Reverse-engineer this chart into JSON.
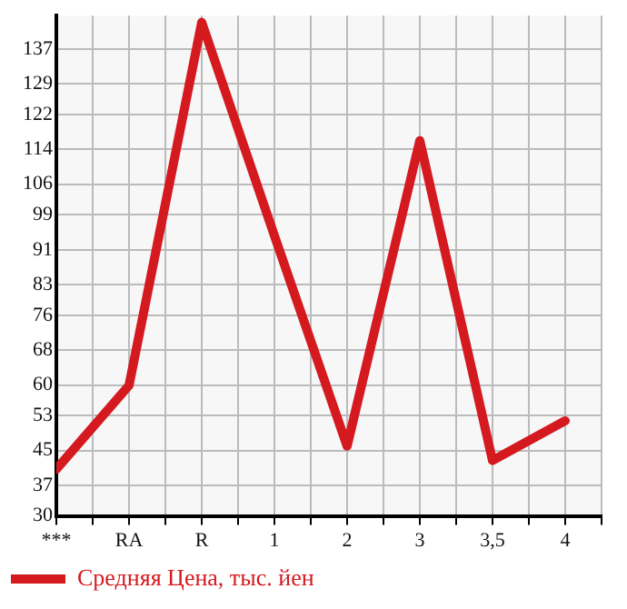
{
  "chart_data": {
    "type": "line",
    "categories": [
      "***",
      "RA",
      "R",
      "1",
      "2",
      "3",
      "3,5",
      "4"
    ],
    "series": [
      {
        "name": "Средняя Цена, тыс. йен",
        "color": "#d41a1f",
        "values": [
          40.7,
          59.9,
          143.1,
          94.2,
          46,
          116,
          42.7,
          51.8
        ]
      }
    ],
    "ylim": [
      30,
      144.64
    ],
    "yticks": [
      30,
      37,
      45,
      53,
      60,
      68,
      76,
      83,
      91,
      99,
      106,
      114,
      122,
      129,
      137
    ],
    "grid": true,
    "legend": "bottom left",
    "marker": "none",
    "line_style": "solid"
  }
}
